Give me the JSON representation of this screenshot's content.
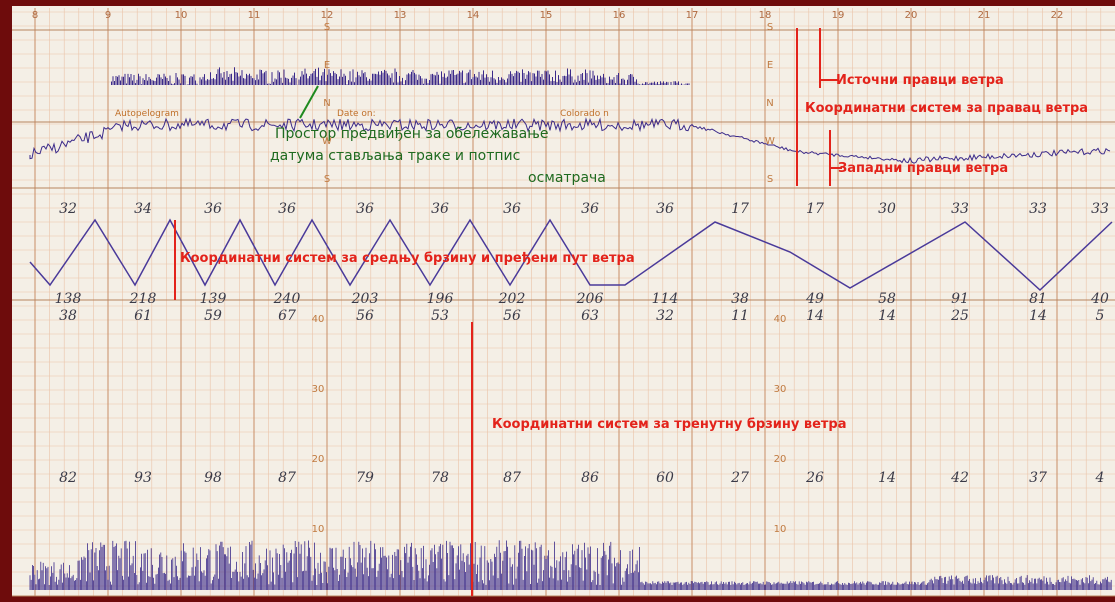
{
  "hour_labels": [
    "8",
    "9",
    "10",
    "11",
    "12",
    "13",
    "14",
    "15",
    "16",
    "17",
    "18",
    "19",
    "20",
    "21",
    "22"
  ],
  "compass_labels": [
    "S",
    "E",
    "N",
    "W",
    "S"
  ],
  "speed_scale_labels": [
    "40",
    "30",
    "20",
    "10"
  ],
  "form_labels": [
    "Autopelogram",
    "Date on:",
    "Colorado n"
  ],
  "annotations": {
    "east_directions": "Источни правци ветра",
    "direction_system": "Координатни систем за правац ветра",
    "west_directions": "Западни правци ветра",
    "mean_speed_system": "Координатни систем за средњу брзину и пређени пут ветра",
    "instant_speed_system": "Координатни систем за тренутну брзину ветра",
    "observer_note": [
      "Простор предвиђен за обележавање",
      "датума стављања траке и потпис",
      "осматрача"
    ]
  },
  "direction_row": [
    "32",
    "34",
    "36",
    "36",
    "36",
    "36",
    "36",
    "36",
    "36",
    "17",
    "17",
    "30",
    "33",
    "33",
    "33"
  ],
  "run_row": [
    "138",
    "218",
    "139",
    "240",
    "203",
    "196",
    "202",
    "206",
    "114",
    "38",
    "49",
    "58",
    "91",
    "81",
    "40"
  ],
  "mean_speed_row": [
    "38",
    "61",
    "59",
    "67",
    "56",
    "53",
    "56",
    "63",
    "32",
    "11",
    "14",
    "14",
    "25",
    "14",
    "5"
  ],
  "instant_speed_row": [
    "82",
    "93",
    "98",
    "87",
    "79",
    "78",
    "87",
    "86",
    "60",
    "27",
    "26",
    "14",
    "42",
    "37",
    "4"
  ]
}
